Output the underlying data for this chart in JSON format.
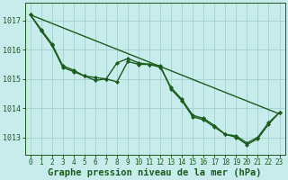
{
  "bg_color": "#c8ecec",
  "grid_color": "#a8d4d4",
  "line_color": "#1a5c1a",
  "marker_color": "#1a5c1a",
  "xlabel": "Graphe pression niveau de la mer (hPa)",
  "xlabel_fontsize": 7.5,
  "xlim": [
    -0.5,
    23.5
  ],
  "ylim": [
    1012.4,
    1017.6
  ],
  "yticks": [
    1013,
    1014,
    1015,
    1016,
    1017
  ],
  "xticks": [
    0,
    1,
    2,
    3,
    4,
    5,
    6,
    7,
    8,
    9,
    10,
    11,
    12,
    13,
    14,
    15,
    16,
    17,
    18,
    19,
    20,
    21,
    22,
    23
  ],
  "series": [
    {
      "x": [
        0,
        23
      ],
      "y": [
        1017.2,
        1013.8
      ],
      "marker": null,
      "markersize": 0,
      "linewidth": 1.0
    },
    {
      "x": [
        0,
        1,
        2,
        3,
        4,
        5,
        6,
        7,
        8,
        9,
        10,
        11,
        12,
        13,
        14,
        15,
        16,
        17,
        18,
        19,
        20,
        21,
        22,
        23
      ],
      "y": [
        1017.2,
        1016.7,
        1016.2,
        1015.45,
        1015.3,
        1015.1,
        1015.05,
        1015.0,
        1015.55,
        1015.7,
        1015.55,
        1015.5,
        1015.45,
        1014.65,
        1014.25,
        1013.7,
        1013.6,
        1013.35,
        1013.1,
        1013.0,
        1012.75,
        1012.95,
        1013.45,
        1013.85
      ],
      "marker": "D",
      "markersize": 2.0,
      "linewidth": 1.0
    },
    {
      "x": [
        0,
        1,
        2,
        3,
        4,
        5,
        6,
        7,
        8,
        9,
        10,
        11,
        12,
        13,
        14,
        15,
        16,
        17,
        18,
        19,
        20,
        21,
        22,
        23
      ],
      "y": [
        1017.2,
        1016.65,
        1016.15,
        1015.4,
        1015.25,
        1015.1,
        1014.95,
        1015.0,
        1014.9,
        1015.6,
        1015.5,
        1015.5,
        1015.4,
        1014.7,
        1014.3,
        1013.75,
        1013.65,
        1013.4,
        1013.1,
        1013.05,
        1012.8,
        1013.0,
        1013.5,
        1013.85
      ],
      "marker": "D",
      "markersize": 2.0,
      "linewidth": 1.0
    }
  ]
}
